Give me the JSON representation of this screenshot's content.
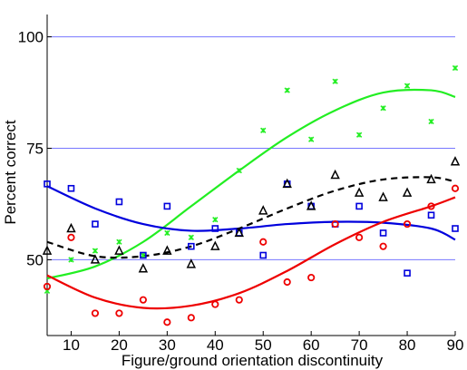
{
  "chart_data": {
    "type": "scatter",
    "xlabel": "Figure/ground orientation discontinuity",
    "ylabel": "Percent correct",
    "xlim": [
      5,
      90
    ],
    "ylim": [
      33,
      105
    ],
    "xticks": [
      10,
      20,
      30,
      40,
      50,
      60,
      70,
      80,
      90
    ],
    "yticks": [
      50,
      75,
      100
    ],
    "grid": "horizontal lines at y ticks",
    "legend": "none",
    "colors": {
      "green": "#22ee22",
      "blue": "#0000dd",
      "red": "#ee0000",
      "black": "#000000",
      "grid": "#7777ff"
    },
    "series": [
      {
        "marker": "x-cross",
        "color": "#22ee22",
        "x": [
          5,
          10,
          15,
          20,
          25,
          30,
          35,
          40,
          45,
          50,
          55,
          60,
          65,
          70,
          75,
          80,
          85,
          90
        ],
        "y": [
          43,
          50,
          52,
          54,
          51,
          56,
          55,
          59,
          70,
          79,
          88,
          77,
          90,
          78,
          84,
          89,
          81,
          93
        ],
        "fit": [
          [
            5,
            45.8
          ],
          [
            15,
            48.5
          ],
          [
            25,
            54
          ],
          [
            35,
            62
          ],
          [
            45,
            70
          ],
          [
            55,
            77.5
          ],
          [
            65,
            83.5
          ],
          [
            75,
            87.5
          ],
          [
            85,
            88
          ],
          [
            90,
            86.5
          ]
        ]
      },
      {
        "marker": "square",
        "color": "#0000dd",
        "x": [
          5,
          10,
          15,
          20,
          25,
          30,
          35,
          40,
          45,
          50,
          55,
          60,
          65,
          70,
          75,
          80,
          85,
          90
        ],
        "y": [
          67,
          66,
          58,
          63,
          51,
          62,
          53,
          57,
          56,
          51,
          67,
          62,
          58,
          62,
          56,
          47,
          60,
          57
        ],
        "fit": [
          [
            5,
            66.5
          ],
          [
            15,
            61.5
          ],
          [
            25,
            58
          ],
          [
            35,
            56.5
          ],
          [
            45,
            57
          ],
          [
            55,
            58
          ],
          [
            65,
            58.5
          ],
          [
            75,
            58.3
          ],
          [
            85,
            57
          ],
          [
            90,
            54.5
          ]
        ]
      },
      {
        "marker": "circle",
        "color": "#ee0000",
        "x": [
          5,
          10,
          15,
          20,
          25,
          30,
          35,
          40,
          45,
          50,
          55,
          60,
          65,
          70,
          75,
          80,
          85,
          90
        ],
        "y": [
          44,
          55,
          38,
          38,
          41,
          36,
          37,
          40,
          41,
          54,
          45,
          46,
          58,
          55,
          53,
          58,
          62,
          66
        ],
        "fit": [
          [
            5,
            46.5
          ],
          [
            15,
            41.5
          ],
          [
            25,
            39.2
          ],
          [
            35,
            39.7
          ],
          [
            45,
            42.5
          ],
          [
            55,
            47.5
          ],
          [
            65,
            53.5
          ],
          [
            75,
            58.5
          ],
          [
            85,
            62
          ],
          [
            90,
            64
          ]
        ]
      },
      {
        "marker": "triangle",
        "color": "#000000",
        "line_style": "dashed",
        "x": [
          5,
          10,
          15,
          20,
          25,
          30,
          35,
          40,
          45,
          50,
          55,
          60,
          65,
          70,
          75,
          80,
          85,
          90
        ],
        "y": [
          52,
          57,
          50,
          52,
          48,
          52,
          49,
          53,
          56,
          61,
          67,
          62,
          69,
          65,
          64,
          65,
          68,
          72
        ],
        "fit": [
          [
            5,
            54
          ],
          [
            15,
            50.8
          ],
          [
            25,
            50.8
          ],
          [
            35,
            53
          ],
          [
            45,
            57
          ],
          [
            55,
            61.5
          ],
          [
            65,
            65.5
          ],
          [
            75,
            68
          ],
          [
            85,
            68.5
          ],
          [
            90,
            67.5
          ]
        ]
      }
    ]
  }
}
